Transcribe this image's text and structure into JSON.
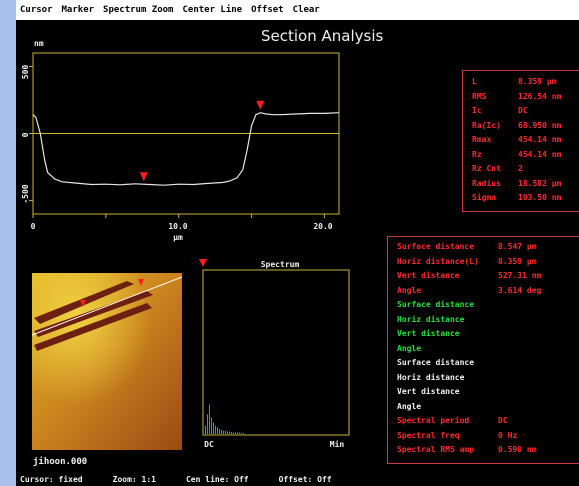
{
  "menu": [
    "Cursor",
    "Marker",
    "Spectrum Zoom",
    "Center Line",
    "Offset",
    "Clear"
  ],
  "title": "Section Analysis",
  "section_plot": {
    "y_unit": "nm",
    "x_unit": "µm",
    "y_ticks": [
      "500",
      "0",
      "-500"
    ],
    "x_ticks": [
      "0",
      "10.0",
      "20.0"
    ],
    "colors": {
      "trace": "#e6e6e6",
      "axis": "#c8b432",
      "marker": "#ff1e1e"
    },
    "chart_data": {
      "type": "line",
      "title": "",
      "xlabel": "µm",
      "ylabel": "nm",
      "xlim": [
        0,
        21
      ],
      "ylim": [
        -600,
        600
      ],
      "x": [
        0.0,
        0.2,
        0.5,
        0.8,
        1.0,
        1.5,
        2.0,
        3.0,
        4.0,
        5.0,
        6.0,
        7.0,
        8.0,
        9.0,
        10.0,
        11.0,
        12.0,
        13.0,
        13.5,
        14.0,
        14.4,
        14.7,
        15.0,
        15.3,
        15.6,
        16.0,
        16.5,
        17.0,
        18.0,
        19.0,
        20.0,
        21.0
      ],
      "y": [
        140,
        120,
        0,
        -200,
        -290,
        -340,
        -360,
        -370,
        -380,
        -378,
        -382,
        -375,
        -380,
        -385,
        -378,
        -380,
        -372,
        -365,
        -355,
        -330,
        -270,
        -120,
        60,
        140,
        155,
        145,
        140,
        140,
        145,
        150,
        150,
        155
      ]
    },
    "markers_x": [
      7.6,
      15.6
    ]
  },
  "stats": [
    {
      "label": "L",
      "value": "8.359 µm"
    },
    {
      "label": "RMS",
      "value": "126.54 nm"
    },
    {
      "label": "Ic",
      "value": "DC"
    },
    {
      "label": "Ra(Ic)",
      "value": "68.950 nm"
    },
    {
      "label": "Rmax",
      "value": "454.14 nm"
    },
    {
      "label": "Rz",
      "value": "454.14 nm"
    },
    {
      "label": "Rz Cnt",
      "value": "2"
    },
    {
      "label": "Radius",
      "value": "18.582 µm"
    },
    {
      "label": "Sigma",
      "value": "103.50 nm"
    }
  ],
  "measurements": [
    {
      "label": "Surface distance",
      "value": "8.547 µm",
      "color": "red"
    },
    {
      "label": "Horiz distance(L)",
      "value": "8.359 µm",
      "color": "red"
    },
    {
      "label": "Vert distance",
      "value": "527.31 nm",
      "color": "red"
    },
    {
      "label": "Angle",
      "value": "3.614 deg",
      "color": "red"
    },
    {
      "label": "Surface distance",
      "value": "",
      "color": "green"
    },
    {
      "label": "Horiz distance",
      "value": "",
      "color": "green"
    },
    {
      "label": "Vert distance",
      "value": "",
      "color": "green"
    },
    {
      "label": "Angle",
      "value": "",
      "color": "green"
    },
    {
      "label": "Surface distance",
      "value": "",
      "color": "white"
    },
    {
      "label": "Horiz distance",
      "value": "",
      "color": "white"
    },
    {
      "label": "Vert distance",
      "value": "",
      "color": "white"
    },
    {
      "label": "Angle",
      "value": "",
      "color": "white"
    },
    {
      "label": "Spectral period",
      "value": "DC",
      "color": "red"
    },
    {
      "label": "Spectral freq",
      "value": "0 Hz",
      "color": "red"
    },
    {
      "label": "Spectral RMS amp",
      "value": "0.590 nm",
      "color": "red"
    }
  ],
  "spectrum": {
    "title": "Spectrum",
    "x_left_label": "DC",
    "x_right_label": "Min",
    "bars": [
      0.05,
      0.12,
      0.18,
      0.1,
      0.07,
      0.05,
      0.04,
      0.03,
      0.025,
      0.02,
      0.02,
      0.015,
      0.015,
      0.012,
      0.01,
      0.01,
      0.01,
      0.008,
      0.008,
      0.006
    ]
  },
  "image": {
    "filename": "jihoon.000"
  },
  "status": {
    "cursor": "Cursor: fixed",
    "zoom": "Zoom: 1:1",
    "cen_line": "Cen line: Off",
    "offset": "Offset: Off"
  }
}
